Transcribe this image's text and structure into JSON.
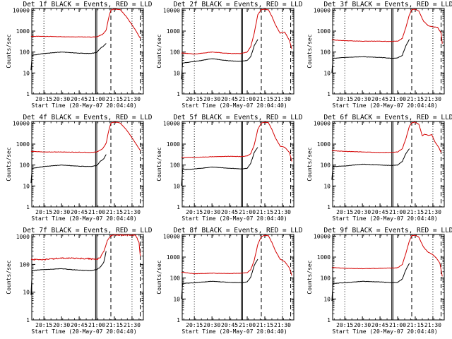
{
  "chart_data": [
    {
      "type": "line",
      "title": "Det 1f BLACK = Events, RED = LLD",
      "xlabel": "Start Time (20-May-07 20:04:40)",
      "ylabel": "Counts/sec",
      "yscale": "log",
      "ylim": [
        1,
        12000
      ],
      "xlim_minutes_from_start": [
        0,
        95
      ],
      "xtick_labels": [
        "20:15",
        "20:30",
        "20:45",
        "21:00",
        "21:15",
        "21:30"
      ],
      "ytick_labels": [
        "1",
        "10",
        "100",
        "1000",
        "10000"
      ],
      "solid_vlines": [
        "20:59",
        "21:00"
      ],
      "dashed_vlines": [
        "21:12",
        "21:37"
      ],
      "dotted_vlines": [
        "20:15",
        "21:30"
      ],
      "series": [
        {
          "color": "#d40000",
          "x": [
            "20:04",
            "20:15",
            "20:30",
            "20:45",
            "20:55",
            "21:00",
            "21:05",
            "21:08",
            "21:10",
            "21:12",
            "21:14",
            "21:17",
            "21:20",
            "21:25",
            "21:30",
            "21:34",
            "21:37"
          ],
          "values": [
            560,
            560,
            540,
            530,
            520,
            530,
            700,
            1100,
            4000,
            10000,
            11000,
            11000,
            10500,
            5000,
            2000,
            900,
            450
          ]
        },
        {
          "color": "#000000",
          "x": [
            "20:04",
            "20:05",
            "20:15",
            "20:30",
            "20:45",
            "20:55",
            "21:00",
            "21:03",
            "21:06",
            "21:08"
          ],
          "values": [
            14,
            70,
            85,
            100,
            88,
            85,
            95,
            150,
            200,
            260
          ]
        }
      ]
    },
    {
      "type": "line",
      "title": "Det 2f BLACK = Events, RED = LLD",
      "xlabel": "Start Time (20-May-07 20:04:40)",
      "ylabel": "Counts/sec",
      "yscale": "log",
      "ylim": [
        1,
        12000
      ],
      "xlim_minutes_from_start": [
        0,
        95
      ],
      "xtick_labels": [
        "20:15",
        "20:30",
        "20:45",
        "21:00",
        "21:15",
        "21:30"
      ],
      "ytick_labels": [
        "1",
        "10",
        "100",
        "1000",
        "10000"
      ],
      "solid_vlines": [
        "20:55",
        "20:56"
      ],
      "dashed_vlines": [
        "21:12",
        "21:37"
      ],
      "dotted_vlines": [
        "20:15",
        "21:30"
      ],
      "series": [
        {
          "color": "#d40000",
          "x": [
            "20:04",
            "20:15",
            "20:30",
            "20:45",
            "20:55",
            "21:00",
            "21:03",
            "21:06",
            "21:09",
            "21:12",
            "21:15",
            "21:18",
            "21:21",
            "21:24",
            "21:28",
            "21:32",
            "21:36",
            "21:38"
          ],
          "values": [
            90,
            80,
            100,
            85,
            85,
            100,
            180,
            800,
            6000,
            10500,
            11000,
            10500,
            5000,
            2000,
            800,
            900,
            350,
            140
          ]
        },
        {
          "color": "#000000",
          "x": [
            "20:04",
            "20:05",
            "20:15",
            "20:30",
            "20:45",
            "20:55",
            "21:00",
            "21:03",
            "21:06",
            "21:09"
          ],
          "values": [
            5,
            30,
            35,
            48,
            38,
            36,
            40,
            60,
            200,
            400
          ]
        }
      ]
    },
    {
      "type": "line",
      "title": "Det 3f BLACK = Events, RED = LLD",
      "xlabel": "Start Time (20-May-07 20:04:40)",
      "ylabel": "Counts/sec",
      "yscale": "log",
      "ylim": [
        1,
        12000
      ],
      "xlim_minutes_from_start": [
        0,
        95
      ],
      "xtick_labels": [
        "20:15",
        "20:30",
        "20:45",
        "21:00",
        "21:15",
        "21:30"
      ],
      "ytick_labels": [
        "1",
        "10",
        "100",
        "1000",
        "10000"
      ],
      "solid_vlines": [
        "20:55",
        "20:56"
      ],
      "dashed_vlines": [
        "21:12",
        "21:37"
      ],
      "dotted_vlines": [
        "20:15",
        "21:30"
      ],
      "series": [
        {
          "color": "#d40000",
          "x": [
            "20:04",
            "20:15",
            "20:30",
            "20:45",
            "20:55",
            "21:00",
            "21:04",
            "21:07",
            "21:10",
            "21:12",
            "21:15",
            "21:18",
            "21:22",
            "21:26",
            "21:30",
            "21:34",
            "21:37",
            "21:38"
          ],
          "values": [
            380,
            350,
            330,
            330,
            320,
            330,
            450,
            1500,
            6000,
            10500,
            11000,
            9000,
            3000,
            1800,
            1600,
            1500,
            800,
            250
          ]
        },
        {
          "color": "#000000",
          "x": [
            "20:04",
            "20:05",
            "20:15",
            "20:30",
            "20:45",
            "20:55",
            "21:00",
            "21:04",
            "21:07",
            "21:10"
          ],
          "values": [
            10,
            50,
            55,
            60,
            55,
            50,
            52,
            70,
            200,
            400
          ]
        }
      ]
    },
    {
      "type": "line",
      "title": "Det 4f BLACK = Events, RED = LLD",
      "xlabel": "Start Time (20-May-07 20:04:40)",
      "ylabel": "Counts/sec",
      "yscale": "log",
      "ylim": [
        1,
        12000
      ],
      "xlim_minutes_from_start": [
        0,
        95
      ],
      "xtick_labels": [
        "20:15",
        "20:30",
        "20:45",
        "21:00",
        "21:15",
        "21:30"
      ],
      "ytick_labels": [
        "1",
        "10",
        "100",
        "1000",
        "10000"
      ],
      "solid_vlines": [
        "20:59",
        "21:00"
      ],
      "dashed_vlines": [
        "21:12",
        "21:37"
      ],
      "dotted_vlines": [
        "20:15",
        "21:30"
      ],
      "series": [
        {
          "color": "#d40000",
          "x": [
            "20:04",
            "20:15",
            "20:30",
            "20:45",
            "20:55",
            "21:00",
            "21:05",
            "21:08",
            "21:10",
            "21:12",
            "21:14",
            "21:17",
            "21:20",
            "21:25",
            "21:30",
            "21:34",
            "21:37"
          ],
          "values": [
            450,
            420,
            420,
            410,
            400,
            420,
            600,
            1100,
            4000,
            10000,
            11000,
            11000,
            10000,
            5000,
            2000,
            900,
            500
          ]
        },
        {
          "color": "#000000",
          "x": [
            "20:04",
            "20:05",
            "20:15",
            "20:30",
            "20:45",
            "20:55",
            "21:00",
            "21:03",
            "21:06",
            "21:08"
          ],
          "values": [
            14,
            70,
            85,
            100,
            88,
            85,
            95,
            150,
            200,
            320
          ]
        }
      ]
    },
    {
      "type": "line",
      "title": "Det 5f BLACK = Events, RED = LLD",
      "xlabel": "Start Time (20-May-07 20:04:40)",
      "ylabel": "Counts/sec",
      "yscale": "log",
      "ylim": [
        1,
        12000
      ],
      "xlim_minutes_from_start": [
        0,
        95
      ],
      "xtick_labels": [
        "20:15",
        "20:30",
        "20:45",
        "21:00",
        "21:15",
        "21:30"
      ],
      "ytick_labels": [
        "1",
        "10",
        "100",
        "1000",
        "10000"
      ],
      "solid_vlines": [
        "20:55",
        "20:56"
      ],
      "dashed_vlines": [
        "21:12",
        "21:37"
      ],
      "dotted_vlines": [
        "20:15",
        "21:30"
      ],
      "series": [
        {
          "color": "#d40000",
          "x": [
            "20:04",
            "20:15",
            "20:30",
            "20:45",
            "20:55",
            "21:00",
            "21:03",
            "21:06",
            "21:09",
            "21:12",
            "21:15",
            "21:18",
            "21:21",
            "21:24",
            "21:28",
            "21:32",
            "21:36",
            "21:38"
          ],
          "values": [
            230,
            230,
            250,
            260,
            255,
            270,
            350,
            900,
            5000,
            10000,
            11000,
            10500,
            5000,
            2000,
            800,
            700,
            400,
            150
          ]
        },
        {
          "color": "#000000",
          "x": [
            "20:04",
            "20:05",
            "20:15",
            "20:30",
            "20:45",
            "20:55",
            "21:00",
            "21:03",
            "21:06",
            "21:09"
          ],
          "values": [
            10,
            60,
            65,
            80,
            70,
            65,
            70,
            120,
            400,
            700
          ]
        }
      ]
    },
    {
      "type": "line",
      "title": "Det 6f BLACK = Events, RED = LLD",
      "xlabel": "Start Time (20-May-07 20:04:40)",
      "ylabel": "Counts/sec",
      "yscale": "log",
      "ylim": [
        1,
        12000
      ],
      "xlim_minutes_from_start": [
        0,
        95
      ],
      "xtick_labels": [
        "20:15",
        "20:30",
        "20:45",
        "21:00",
        "21:15",
        "21:30"
      ],
      "ytick_labels": [
        "1",
        "10",
        "100",
        "1000",
        "10000"
      ],
      "solid_vlines": [
        "20:55",
        "20:56"
      ],
      "dashed_vlines": [
        "21:12",
        "21:37"
      ],
      "dotted_vlines": [
        "20:15",
        "21:30"
      ],
      "series": [
        {
          "color": "#d40000",
          "x": [
            "20:04",
            "20:15",
            "20:30",
            "20:45",
            "20:55",
            "21:00",
            "21:04",
            "21:07",
            "21:10",
            "21:12",
            "21:15",
            "21:18",
            "21:21",
            "21:23",
            "21:26",
            "21:29",
            "21:32",
            "21:35",
            "21:37"
          ],
          "values": [
            480,
            450,
            420,
            400,
            400,
            420,
            600,
            1800,
            7000,
            10500,
            11000,
            9000,
            2500,
            3000,
            2600,
            2800,
            1200,
            700,
            400
          ]
        },
        {
          "color": "#000000",
          "x": [
            "20:04",
            "20:05",
            "20:15",
            "20:30",
            "20:45",
            "20:55",
            "21:00",
            "21:04",
            "21:07",
            "21:10"
          ],
          "values": [
            20,
            85,
            90,
            110,
            100,
            95,
            100,
            150,
            350,
            600
          ]
        }
      ]
    },
    {
      "type": "line",
      "title": "Det 7f BLACK = Events, RED = LLD",
      "xlabel": "Start Time (20-May-07 20:04:40)",
      "ylabel": "Counts/sec",
      "yscale": "log",
      "ylim": [
        1,
        1200
      ],
      "xlim_minutes_from_start": [
        0,
        95
      ],
      "xtick_labels": [
        "20:15",
        "20:30",
        "20:45",
        "21:00",
        "21:15",
        "21:30"
      ],
      "ytick_labels": [
        "1",
        "10",
        "100",
        "1000"
      ],
      "solid_vlines": [
        "20:59",
        "21:00"
      ],
      "dashed_vlines": [
        "21:12",
        "21:37"
      ],
      "dotted_vlines": [
        "20:15",
        "21:30"
      ],
      "series": [
        {
          "color": "#d40000",
          "x": [
            "20:04",
            "20:15",
            "20:30",
            "20:45",
            "20:55",
            "21:00",
            "21:03",
            "21:06",
            "21:09",
            "21:12",
            "21:15",
            "21:18",
            "21:22",
            "21:26",
            "21:30",
            "21:33",
            "21:36",
            "21:37"
          ],
          "values": [
            150,
            150,
            170,
            165,
            160,
            150,
            180,
            300,
            700,
            1100,
            1150,
            1150,
            1150,
            1150,
            1150,
            1150,
            600,
            200
          ]
        },
        {
          "color": "#000000",
          "x": [
            "20:04",
            "20:05",
            "20:15",
            "20:30",
            "20:45",
            "20:55",
            "21:00",
            "21:03",
            "21:06",
            "21:08"
          ],
          "values": [
            8,
            60,
            65,
            70,
            62,
            60,
            65,
            80,
            120,
            300
          ]
        }
      ]
    },
    {
      "type": "line",
      "title": "Det 8f BLACK = Events, RED = LLD",
      "xlabel": "Start Time (20-May-07 20:04:40)",
      "ylabel": "Counts/sec",
      "yscale": "log",
      "ylim": [
        1,
        12000
      ],
      "xlim_minutes_from_start": [
        0,
        95
      ],
      "xtick_labels": [
        "20:15",
        "20:30",
        "20:45",
        "21:00",
        "21:15",
        "21:30"
      ],
      "ytick_labels": [
        "1",
        "10",
        "100",
        "1000",
        "10000"
      ],
      "solid_vlines": [
        "20:55",
        "20:56"
      ],
      "dashed_vlines": [
        "21:12",
        "21:37"
      ],
      "dotted_vlines": [
        "20:15",
        "21:30"
      ],
      "series": [
        {
          "color": "#d40000",
          "x": [
            "20:04",
            "20:15",
            "20:30",
            "20:45",
            "20:55",
            "21:00",
            "21:03",
            "21:06",
            "21:09",
            "21:12",
            "21:15",
            "21:18",
            "21:21",
            "21:24",
            "21:28",
            "21:32",
            "21:36",
            "21:38"
          ],
          "values": [
            190,
            160,
            170,
            165,
            170,
            180,
            250,
            700,
            4000,
            9500,
            11000,
            10500,
            5000,
            2000,
            800,
            600,
            300,
            130
          ]
        },
        {
          "color": "#000000",
          "x": [
            "20:04",
            "20:05",
            "20:15",
            "20:30",
            "20:45",
            "20:55",
            "21:00",
            "21:03",
            "21:06",
            "21:09"
          ],
          "values": [
            10,
            55,
            60,
            70,
            62,
            60,
            65,
            110,
            400,
            800
          ]
        }
      ]
    },
    {
      "type": "line",
      "title": "Det 9f BLACK = Events, RED = LLD",
      "xlabel": "Start Time (20-May-07 20:04:40)",
      "ylabel": "Counts/sec",
      "yscale": "log",
      "ylim": [
        1,
        12000
      ],
      "xlim_minutes_from_start": [
        0,
        95
      ],
      "xtick_labels": [
        "20:15",
        "20:30",
        "20:45",
        "21:00",
        "21:15",
        "21:30"
      ],
      "ytick_labels": [
        "1",
        "10",
        "100",
        "1000",
        "10000"
      ],
      "solid_vlines": [
        "20:55",
        "20:56"
      ],
      "dashed_vlines": [
        "21:12",
        "21:37"
      ],
      "dotted_vlines": [
        "20:15",
        "21:30"
      ],
      "series": [
        {
          "color": "#d40000",
          "x": [
            "20:04",
            "20:15",
            "20:30",
            "20:45",
            "20:55",
            "21:00",
            "21:04",
            "21:07",
            "21:10",
            "21:12",
            "21:15",
            "21:18",
            "21:22",
            "21:26",
            "21:30",
            "21:33",
            "21:36",
            "21:38"
          ],
          "values": [
            320,
            290,
            280,
            290,
            300,
            310,
            450,
            1500,
            6000,
            10500,
            11000,
            9000,
            3000,
            1700,
            1300,
            900,
            500,
            120
          ]
        },
        {
          "color": "#000000",
          "x": [
            "20:04",
            "20:05",
            "20:15",
            "20:30",
            "20:45",
            "20:55",
            "21:00",
            "21:04",
            "21:07",
            "21:10"
          ],
          "values": [
            8,
            55,
            60,
            70,
            65,
            60,
            62,
            90,
            250,
            500
          ]
        }
      ]
    }
  ]
}
